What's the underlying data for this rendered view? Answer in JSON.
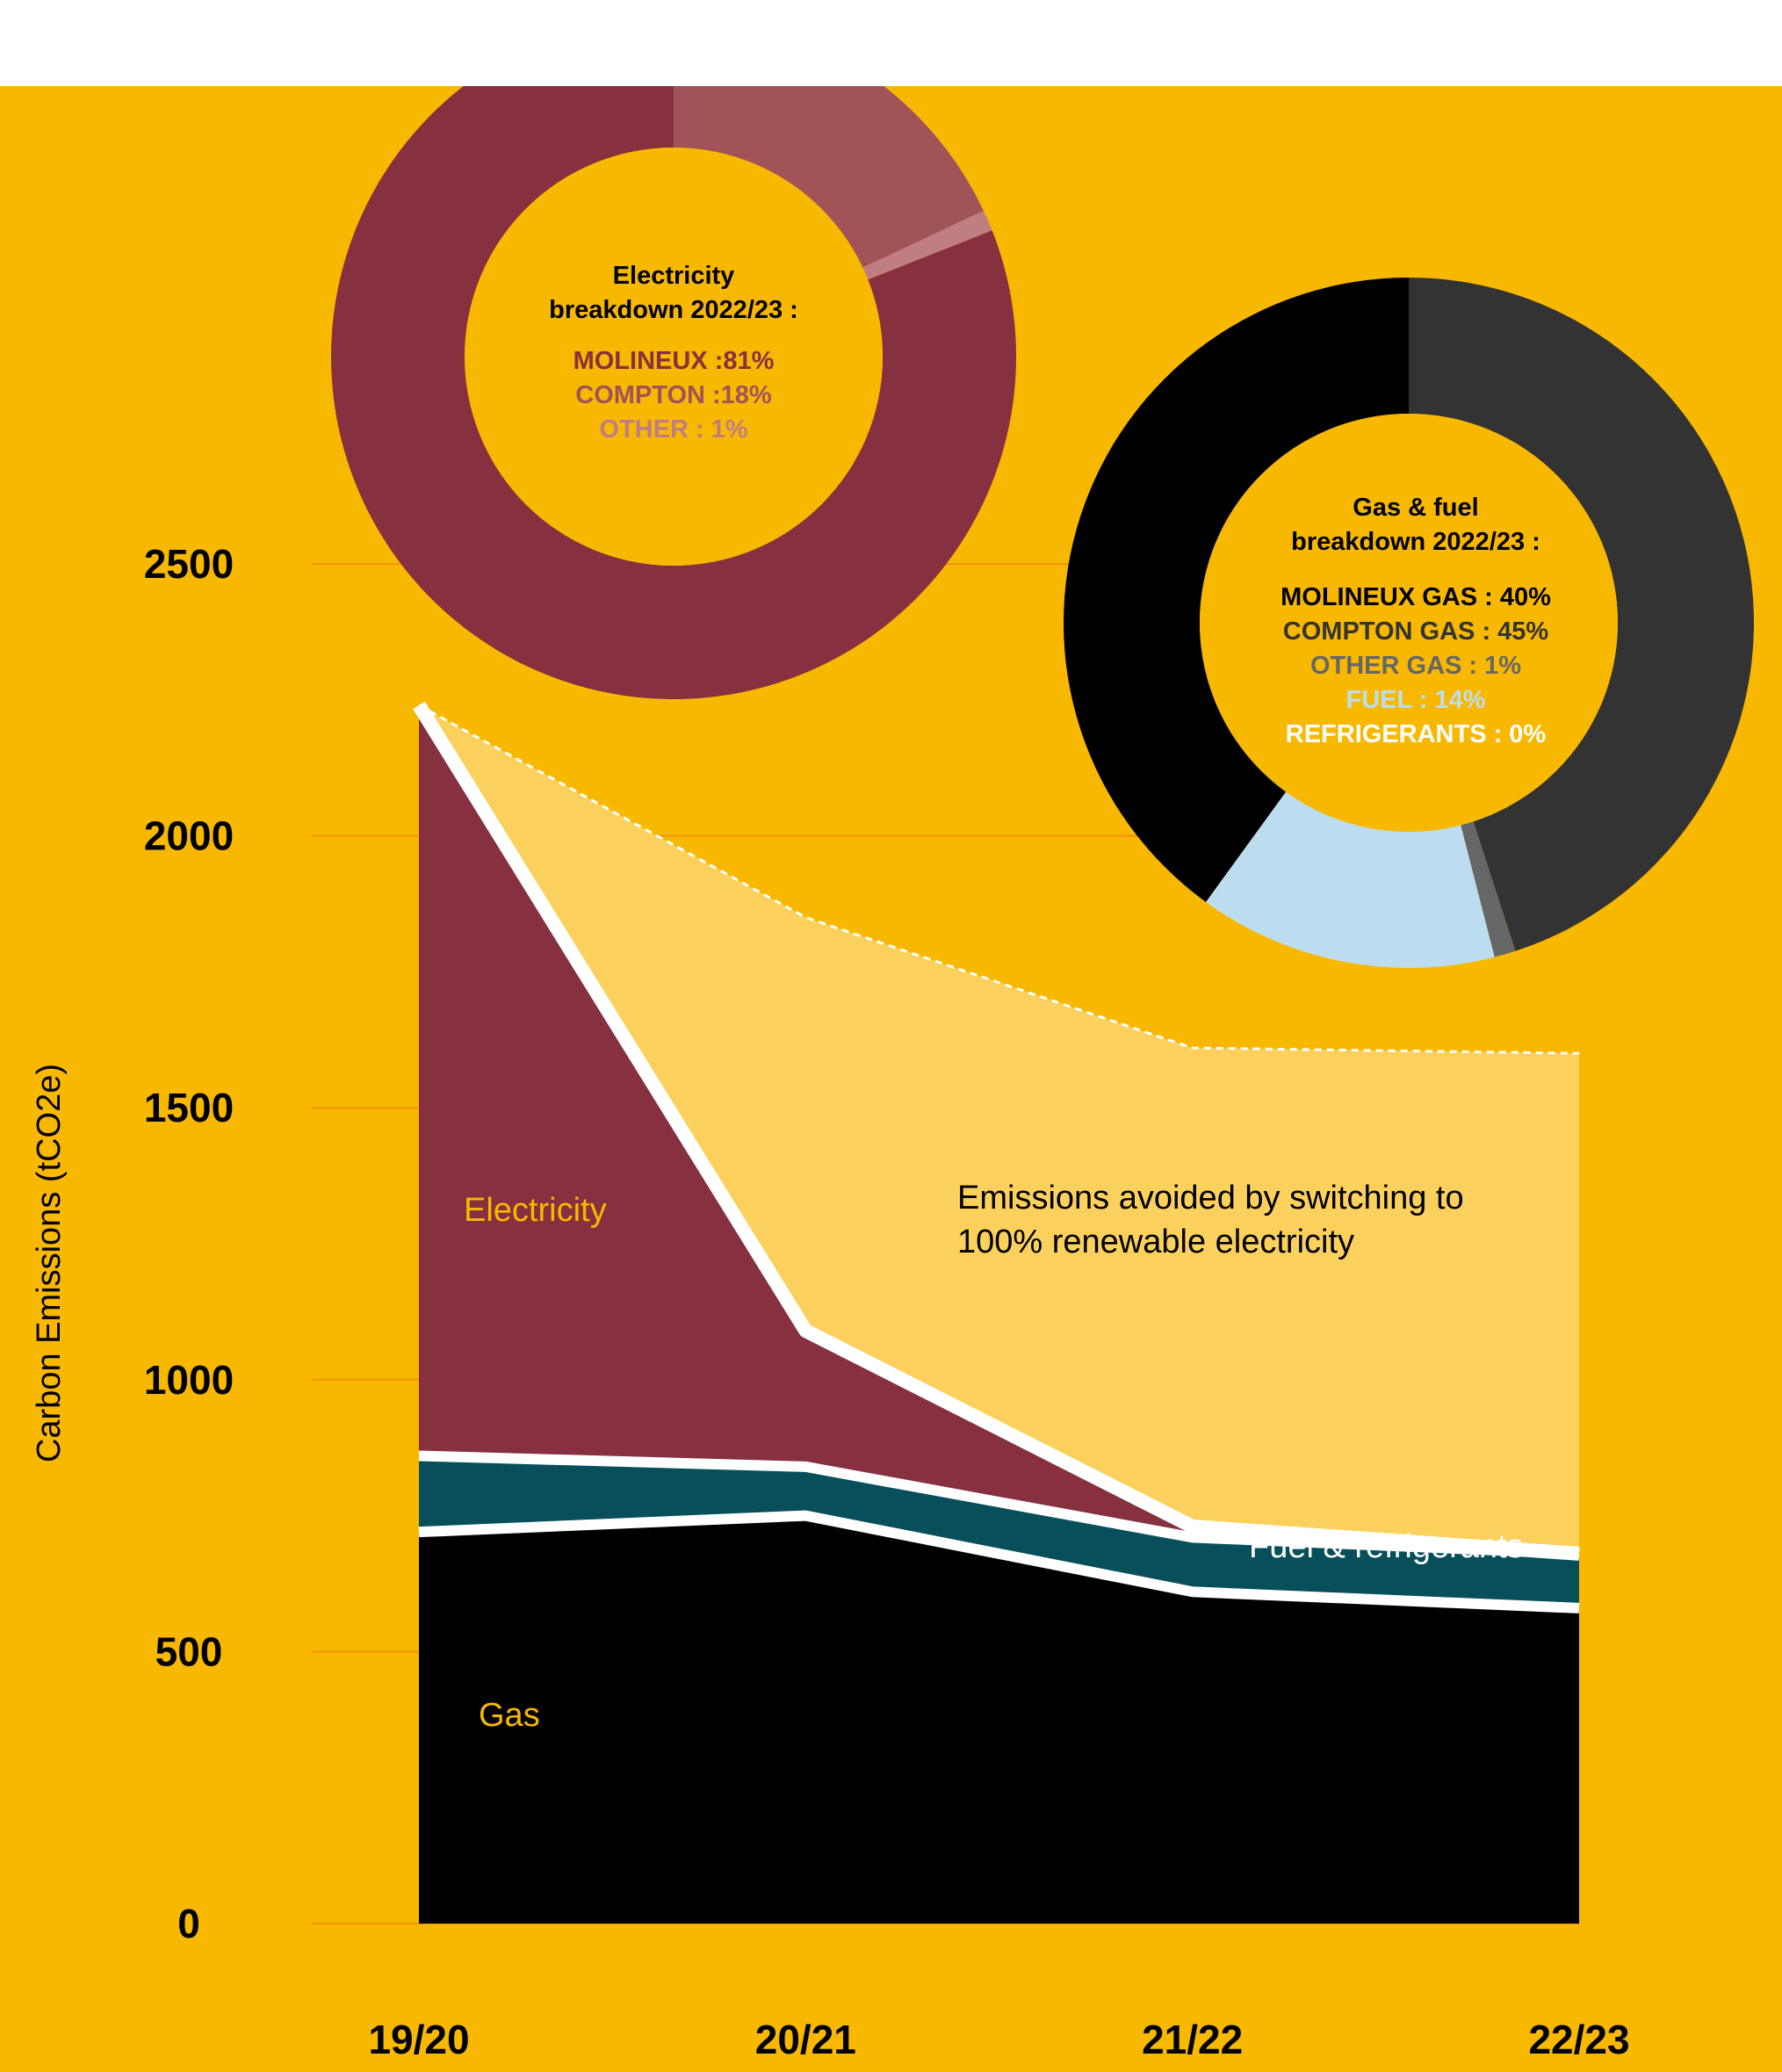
{
  "colors": {
    "panel_bg": "#F9B800",
    "gridline": "#F29400",
    "gas": "#000000",
    "fuel_refrigerants": "#074F5A",
    "electricity": "#87303F",
    "avoided": "#FCD05C",
    "separator": "#FFFFFF",
    "area_label_light": "#F9B800",
    "donut_elec": [
      "#87303F",
      "#A05458",
      "#BE7E82"
    ],
    "donut_gas": [
      "#000000",
      "#333333",
      "#666666",
      "#BCDDF0",
      "#FFFFFF"
    ]
  },
  "chart_data": [
    {
      "type": "area",
      "title": "",
      "xlabel": "",
      "ylabel": "Carbon Emissions (tCO2e)",
      "ylim": [
        0,
        2700
      ],
      "yticks": [
        0,
        500,
        1000,
        1500,
        2000,
        2500
      ],
      "categories": [
        "19/20",
        "20/21",
        "21/22",
        "22/23"
      ],
      "series": [
        {
          "name": "Gas",
          "values": [
            720,
            750,
            610,
            580
          ]
        },
        {
          "name": "Fuel & refrigerants",
          "values": [
            140,
            90,
            100,
            100
          ]
        },
        {
          "name": "Electricity",
          "values": [
            1380,
            250,
            20,
            0
          ]
        },
        {
          "name": "Emissions avoided by switching to 100% renewable electricity",
          "values": [
            0,
            760,
            880,
            920
          ]
        }
      ],
      "annotations": {
        "electricity": "Electricity",
        "gas": "Gas",
        "fuel": "Fuel & refrigerants",
        "avoided_line1": "Emissions avoided by switching to",
        "avoided_line2": "100% renewable electricity"
      },
      "grid": true
    },
    {
      "type": "pie",
      "title_line1": "Electricity",
      "title_line2": "breakdown 2022/23 :",
      "slices": [
        {
          "label": "MOLINEUX :81%",
          "value": 81
        },
        {
          "label": "COMPTON :18%",
          "value": 18
        },
        {
          "label": "OTHER : 1%",
          "value": 1
        }
      ]
    },
    {
      "type": "pie",
      "title_line1": "Gas & fuel",
      "title_line2": "breakdown 2022/23 :",
      "slices": [
        {
          "label": "MOLINEUX GAS : 40%",
          "value": 40
        },
        {
          "label": "COMPTON GAS : 45%",
          "value": 45
        },
        {
          "label": "OTHER GAS : 1%",
          "value": 1
        },
        {
          "label": "FUEL : 14%",
          "value": 14
        },
        {
          "label": "REFRIGERANTS : 0%",
          "value": 0
        }
      ]
    }
  ]
}
